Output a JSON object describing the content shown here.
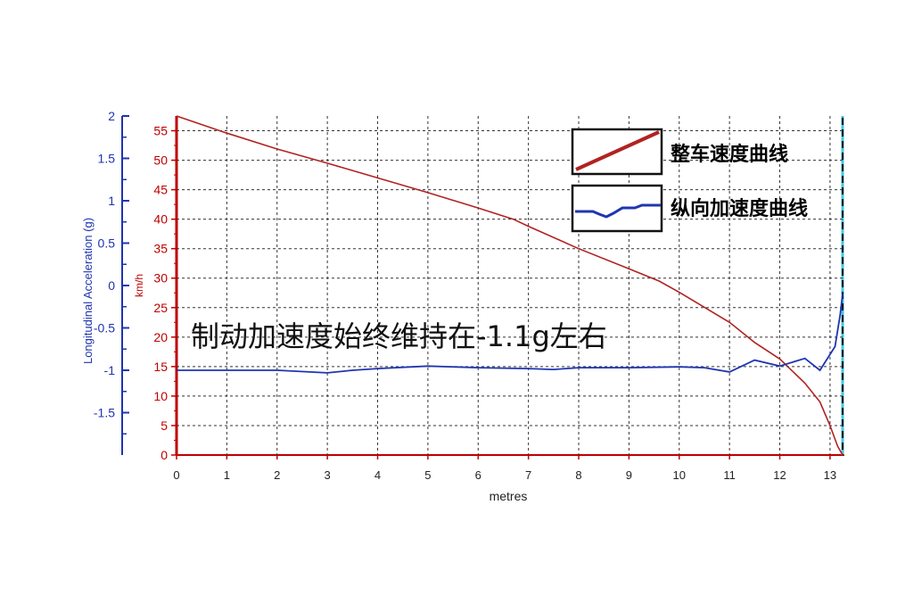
{
  "chart_data": {
    "type": "line",
    "xlabel": "metres",
    "y_left_label": "Longitudinal Acceleration (g)",
    "y_right_label": "km/h",
    "x_ticks": [
      "0",
      "1",
      "2",
      "3",
      "4",
      "5",
      "6",
      "7",
      "8",
      "9",
      "10",
      "11",
      "12",
      "13"
    ],
    "acc_ticks": [
      "2",
      "1.5",
      "1",
      "0.5",
      "0",
      "-0.5",
      "-1",
      "-1.5"
    ],
    "speed_ticks": [
      "55",
      "50",
      "45",
      "40",
      "35",
      "30",
      "25",
      "20",
      "15",
      "10",
      "5",
      "0"
    ],
    "xlim": [
      0,
      13.25
    ],
    "acc_lim": [
      -2,
      2
    ],
    "speed_lim": [
      0,
      57.5
    ],
    "grid": true,
    "legend_position": "top-right",
    "annotation": "制动加速度始终维持在-1.1g左右",
    "series": [
      {
        "name": "整车速度曲线",
        "axis": "speed",
        "color": "#b22222",
        "x": [
          0,
          1,
          2,
          3,
          4,
          5,
          6,
          6.7,
          7,
          8,
          9,
          9.6,
          10,
          11,
          11.5,
          12,
          12.5,
          12.8,
          13,
          13.15,
          13.25
        ],
        "y": [
          57.5,
          54.6,
          51.9,
          49.5,
          47,
          44.5,
          41.9,
          40,
          38.8,
          35,
          31.6,
          29.5,
          27.6,
          22.5,
          19.1,
          16.3,
          12.2,
          9,
          5,
          1.5,
          0
        ]
      },
      {
        "name": "纵向加速度曲线",
        "axis": "acc",
        "color": "#1f35b0",
        "x": [
          0,
          1,
          2,
          3,
          3.5,
          4,
          5,
          6,
          7,
          7.5,
          8,
          9,
          10,
          10.5,
          11,
          11.5,
          12,
          12.5,
          12.8,
          13.1,
          13.2,
          13.25
        ],
        "y": [
          -1.0,
          -1.0,
          -1.0,
          -1.03,
          -1.0,
          -0.98,
          -0.95,
          -0.97,
          -0.98,
          -0.99,
          -0.97,
          -0.97,
          -0.96,
          -0.97,
          -1.02,
          -0.88,
          -0.95,
          -0.86,
          -1.0,
          -0.72,
          -0.35,
          -0.1
        ]
      }
    ]
  }
}
